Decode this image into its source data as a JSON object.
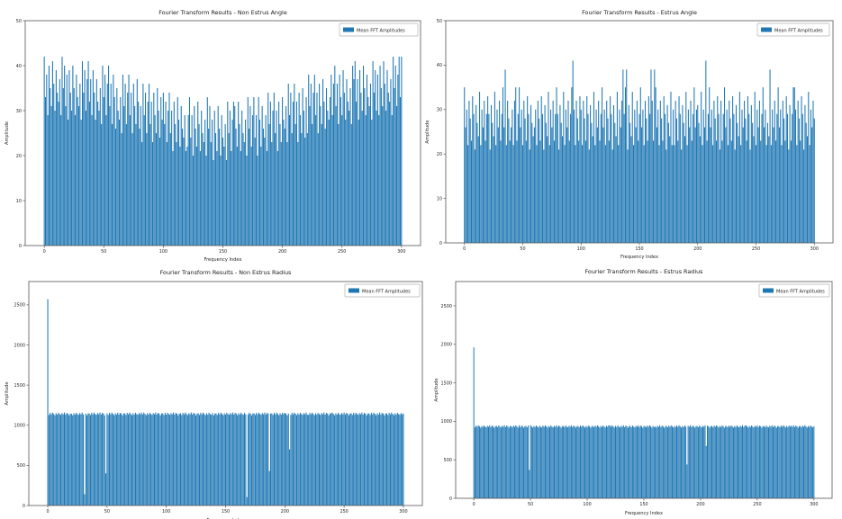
{
  "page": {
    "background": "#ffffff",
    "text_color": "#1a1a1a",
    "spine_color": "#555555",
    "legend_border": "#b3b3b3"
  },
  "chart_data": [
    {
      "id": "non-estrus-angle",
      "type": "bar",
      "title": "Fourier Transform Results - Non Estrus Angle",
      "xlabel": "Frequency Index",
      "ylabel": "Amplitude",
      "legend": {
        "label": "Mean FFT Amplitudes",
        "position": "upper right"
      },
      "bar_color": "#1f77b4",
      "grid": false,
      "xlim": [
        -16,
        316
      ],
      "ylim": [
        0,
        50
      ],
      "xticks": [
        0,
        50,
        100,
        150,
        200,
        250,
        300
      ],
      "yticks": [
        0,
        10,
        20,
        30,
        40,
        50
      ],
      "x_start": 0,
      "x_step": 1,
      "bar_width": 0.8,
      "values": [
        42,
        33,
        38,
        29,
        40,
        35,
        31,
        41,
        36,
        30,
        39,
        34,
        32,
        37,
        29,
        42,
        35,
        40,
        31,
        38,
        28,
        39,
        34,
        30,
        40,
        35,
        29,
        38,
        33,
        31,
        36,
        28,
        41,
        34,
        39,
        30,
        37,
        41,
        32,
        37,
        29,
        39,
        34,
        28,
        37,
        32,
        30,
        35,
        27,
        40,
        33,
        38,
        29,
        36,
        40,
        31,
        36,
        27,
        38,
        33,
        26,
        35,
        30,
        28,
        33,
        25,
        38,
        31,
        36,
        27,
        34,
        38,
        29,
        34,
        25,
        36,
        31,
        27,
        37,
        32,
        26,
        31,
        23,
        36,
        29,
        34,
        25,
        32,
        36,
        27,
        32,
        23,
        34,
        29,
        25,
        35,
        30,
        24,
        33,
        28,
        34,
        27,
        32,
        23,
        30,
        34,
        25,
        30,
        21,
        32,
        27,
        23,
        33,
        28,
        22,
        31,
        26,
        24,
        29,
        21,
        22,
        29,
        33,
        24,
        29,
        20,
        31,
        26,
        22,
        32,
        27,
        21,
        30,
        25,
        23,
        28,
        20,
        33,
        26,
        31,
        23,
        28,
        19,
        30,
        25,
        21,
        31,
        26,
        20,
        29,
        24,
        22,
        27,
        19,
        32,
        25,
        30,
        21,
        28,
        32,
        31,
        26,
        22,
        32,
        27,
        21,
        30,
        25,
        23,
        28,
        20,
        33,
        26,
        31,
        22,
        29,
        33,
        24,
        29,
        20,
        33,
        28,
        22,
        31,
        26,
        24,
        29,
        21,
        34,
        27,
        32,
        23,
        30,
        34,
        25,
        30,
        21,
        32,
        27,
        23,
        33,
        28,
        26,
        31,
        23,
        36,
        29,
        34,
        25,
        32,
        36,
        27,
        32,
        23,
        34,
        29,
        25,
        35,
        30,
        24,
        33,
        25,
        38,
        31,
        36,
        27,
        34,
        38,
        29,
        34,
        25,
        36,
        31,
        27,
        37,
        32,
        26,
        35,
        30,
        28,
        33,
        38,
        29,
        36,
        40,
        31,
        36,
        27,
        38,
        33,
        29,
        39,
        34,
        28,
        37,
        32,
        30,
        35,
        27,
        40,
        37,
        41,
        32,
        37,
        28,
        39,
        34,
        30,
        40,
        35,
        29,
        38,
        33,
        31,
        36,
        28,
        41,
        34,
        39,
        30,
        38,
        29,
        40,
        35,
        31,
        41,
        36,
        30,
        39,
        34,
        32,
        37,
        29,
        42,
        35,
        40,
        31,
        38,
        42,
        33,
        42
      ]
    },
    {
      "id": "estrus-angle",
      "type": "bar",
      "title": "Fourier Transform Results - Estrus Angle",
      "xlabel": "Frequency Index",
      "ylabel": "Amplitude",
      "legend": {
        "label": "Mean FFT Amplitudes",
        "position": "upper right"
      },
      "bar_color": "#1f77b4",
      "grid": false,
      "xlim": [
        -16,
        316
      ],
      "ylim": [
        0,
        50
      ],
      "xticks": [
        0,
        50,
        100,
        150,
        200,
        250,
        300
      ],
      "yticks": [
        0,
        10,
        20,
        30,
        40,
        50
      ],
      "x_start": 0,
      "x_step": 1,
      "bar_width": 0.8,
      "values": [
        35,
        26,
        30,
        22,
        32,
        28,
        23,
        33,
        29,
        21,
        31,
        27,
        24,
        34,
        22,
        30,
        26,
        32,
        23,
        29,
        33,
        29,
        21,
        31,
        27,
        24,
        34,
        22,
        30,
        26,
        32,
        23,
        29,
        35,
        26,
        39,
        22,
        32,
        28,
        23,
        26,
        30,
        22,
        32,
        35,
        23,
        29,
        35,
        26,
        30,
        22,
        32,
        28,
        23,
        33,
        29,
        21,
        31,
        27,
        24,
        26,
        30,
        22,
        32,
        28,
        23,
        33,
        29,
        21,
        31,
        27,
        24,
        34,
        22,
        30,
        26,
        32,
        23,
        29,
        35,
        29,
        21,
        31,
        27,
        24,
        34,
        22,
        30,
        26,
        32,
        23,
        29,
        35,
        41,
        30,
        22,
        32,
        28,
        23,
        33,
        30,
        22,
        32,
        28,
        23,
        33,
        29,
        21,
        31,
        27,
        24,
        34,
        22,
        30,
        26,
        32,
        23,
        29,
        35,
        26,
        30,
        22,
        32,
        28,
        23,
        33,
        29,
        21,
        31,
        27,
        24,
        34,
        22,
        30,
        26,
        32,
        39,
        29,
        35,
        39,
        21,
        31,
        27,
        24,
        34,
        22,
        30,
        26,
        32,
        23,
        29,
        35,
        26,
        30,
        22,
        32,
        28,
        23,
        33,
        29,
        39,
        32,
        23,
        39,
        35,
        26,
        30,
        22,
        32,
        28,
        23,
        33,
        29,
        21,
        31,
        27,
        24,
        34,
        22,
        30,
        22,
        32,
        28,
        23,
        33,
        29,
        21,
        31,
        27,
        24,
        34,
        22,
        30,
        26,
        32,
        23,
        29,
        35,
        26,
        30,
        31,
        27,
        24,
        34,
        22,
        30,
        26,
        41,
        23,
        29,
        35,
        26,
        30,
        22,
        32,
        28,
        23,
        33,
        29,
        21,
        32,
        23,
        29,
        35,
        26,
        30,
        22,
        32,
        28,
        23,
        33,
        29,
        21,
        31,
        27,
        24,
        34,
        22,
        30,
        26,
        32,
        28,
        23,
        33,
        29,
        21,
        31,
        27,
        24,
        34,
        22,
        30,
        26,
        32,
        23,
        29,
        35,
        26,
        30,
        22,
        27,
        24,
        39,
        22,
        30,
        26,
        32,
        23,
        29,
        35,
        26,
        30,
        22,
        32,
        28,
        23,
        33,
        29,
        21,
        31,
        23,
        29,
        35,
        35,
        30,
        22,
        32,
        28,
        23,
        33,
        29,
        21,
        31,
        27,
        24,
        34,
        22,
        30,
        26,
        32,
        28
      ]
    },
    {
      "id": "non-estrus-radius",
      "type": "bar",
      "title": "Fourier Transform Results - Non Estrus Radius",
      "xlabel": "Frequency Index",
      "ylabel": "Amplitude",
      "legend": {
        "label": "Mean FFT Amplitudes",
        "position": "upper right"
      },
      "bar_color": "#1f77b4",
      "grid": false,
      "xlim": [
        -16,
        316
      ],
      "ylim": [
        0,
        2790
      ],
      "xticks": [
        0,
        50,
        100,
        150,
        200,
        250,
        300
      ],
      "yticks": [
        0,
        500,
        1000,
        1500,
        2000,
        2500
      ],
      "x_start": 0,
      "x_step": 1,
      "bar_width": 0.8,
      "values": [
        2570,
        1128,
        1155,
        1135,
        1158,
        1142,
        1125,
        1150,
        1132,
        1156,
        1140,
        1130,
        1152,
        1137,
        1159,
        1133,
        1154,
        1145,
        1123,
        1146,
        1142,
        1125,
        1150,
        1132,
        1156,
        1140,
        1130,
        1152,
        1137,
        1159,
        1133,
        140,
        1145,
        1123,
        1146,
        1148,
        1128,
        1155,
        1135,
        1158,
        1140,
        1130,
        1152,
        1137,
        1159,
        1133,
        1154,
        1145,
        1123,
        400,
        1148,
        1128,
        1155,
        1135,
        1158,
        1142,
        1125,
        1150,
        1132,
        1156,
        1133,
        1154,
        1145,
        1123,
        1146,
        1148,
        1128,
        1155,
        1135,
        1158,
        1142,
        1125,
        1150,
        1132,
        1156,
        1140,
        1130,
        1152,
        1137,
        1159,
        1135,
        1158,
        1142,
        1125,
        1150,
        1132,
        1156,
        1140,
        1130,
        1152,
        1137,
        1159,
        1133,
        1154,
        1145,
        1123,
        1146,
        1148,
        1128,
        1155,
        1132,
        1156,
        1140,
        1130,
        1152,
        1137,
        1159,
        1133,
        1154,
        1145,
        1123,
        1146,
        1148,
        1128,
        1155,
        1135,
        1158,
        1142,
        1125,
        1150,
        1137,
        1159,
        1133,
        1154,
        1145,
        1123,
        1146,
        1148,
        1128,
        1155,
        1135,
        1158,
        1142,
        1125,
        1150,
        1132,
        1156,
        1140,
        1130,
        1152,
        1123,
        1146,
        1148,
        1128,
        1155,
        1135,
        1158,
        1142,
        1125,
        1150,
        1132,
        1156,
        1140,
        1130,
        1152,
        1137,
        1159,
        1133,
        1154,
        1145,
        1125,
        1150,
        1132,
        1156,
        1140,
        1130,
        1152,
        1137,
        105,
        1133,
        1154,
        1145,
        1123,
        1146,
        1148,
        1128,
        1155,
        1135,
        1158,
        1142,
        1130,
        1152,
        1137,
        1159,
        1133,
        1154,
        1145,
        430,
        1146,
        1148,
        1128,
        1155,
        1135,
        1158,
        1142,
        1125,
        1150,
        1132,
        1156,
        1140,
        1154,
        1145,
        1123,
        1146,
        700,
        1128,
        1155,
        1135,
        1158,
        1142,
        1125,
        1150,
        1132,
        1156,
        1140,
        1130,
        1152,
        1137,
        1159,
        1133,
        1128,
        1155,
        1135,
        1158,
        1142,
        1125,
        1150,
        1132,
        1156,
        1140,
        1130,
        1152,
        1137,
        1159,
        1133,
        1154,
        1145,
        1123,
        1146,
        1148,
        1158,
        1142,
        1125,
        1150,
        1132,
        1156,
        1140,
        1130,
        1152,
        1137,
        1159,
        1133,
        1154,
        1145,
        1123,
        1146,
        1148,
        1128,
        1155,
        1135,
        1156,
        1140,
        1130,
        1152,
        1137,
        1159,
        1133,
        1154,
        1145,
        1123,
        1146,
        1148,
        1128,
        1155,
        1135,
        1158,
        1142,
        1125,
        1150,
        1132,
        1159,
        1133,
        1154,
        1145,
        1123,
        1146,
        1148,
        1128,
        1155,
        1135,
        1158,
        1142,
        1125,
        1150,
        1132,
        1156,
        1140,
        1130,
        1152,
        1137,
        1145
      ]
    },
    {
      "id": "estrus-radius",
      "type": "bar",
      "title": "Fourier Transform Results - Estrus Radius",
      "xlabel": "Frequency Index",
      "ylabel": "Amplitude",
      "legend": {
        "label": "Mean FFT Amplitudes",
        "position": "upper right"
      },
      "bar_color": "#1f77b4",
      "grid": false,
      "xlim": [
        -16,
        316
      ],
      "ylim": [
        0,
        2815
      ],
      "xticks": [
        0,
        50,
        100,
        150,
        200,
        250,
        300
      ],
      "yticks": [
        0,
        500,
        1000,
        1500,
        2000,
        2500
      ],
      "x_start": 0,
      "x_step": 1,
      "bar_width": 0.8,
      "values": [
        1960,
        922,
        945,
        928,
        948,
        935,
        918,
        940,
        925,
        946,
        931,
        921,
        942,
        929,
        949,
        924,
        944,
        936,
        916,
        937,
        940,
        925,
        946,
        931,
        921,
        942,
        929,
        949,
        924,
        944,
        936,
        916,
        937,
        938,
        922,
        945,
        928,
        948,
        935,
        918,
        949,
        924,
        944,
        936,
        916,
        937,
        938,
        922,
        945,
        370,
        948,
        935,
        918,
        940,
        925,
        946,
        931,
        921,
        942,
        929,
        922,
        945,
        928,
        948,
        935,
        918,
        940,
        925,
        946,
        931,
        921,
        942,
        929,
        949,
        924,
        944,
        936,
        916,
        937,
        938,
        925,
        946,
        931,
        921,
        942,
        929,
        949,
        924,
        944,
        936,
        916,
        937,
        938,
        922,
        945,
        928,
        948,
        935,
        918,
        940,
        924,
        944,
        936,
        916,
        937,
        938,
        922,
        945,
        928,
        948,
        935,
        918,
        940,
        925,
        946,
        931,
        921,
        942,
        929,
        949,
        945,
        928,
        948,
        935,
        918,
        940,
        925,
        946,
        931,
        921,
        942,
        929,
        949,
        924,
        944,
        936,
        916,
        937,
        938,
        922,
        946,
        931,
        921,
        942,
        929,
        949,
        924,
        944,
        936,
        916,
        937,
        938,
        922,
        945,
        928,
        948,
        935,
        918,
        940,
        925,
        931,
        921,
        942,
        929,
        949,
        924,
        944,
        936,
        916,
        937,
        938,
        922,
        945,
        928,
        948,
        935,
        918,
        940,
        925,
        946,
        928,
        948,
        935,
        918,
        940,
        925,
        946,
        931,
        440,
        942,
        929,
        949,
        924,
        944,
        936,
        916,
        937,
        938,
        922,
        945,
        931,
        921,
        942,
        929,
        949,
        680,
        944,
        936,
        916,
        937,
        938,
        922,
        945,
        928,
        948,
        935,
        918,
        940,
        925,
        946,
        936,
        916,
        937,
        938,
        922,
        945,
        928,
        948,
        935,
        918,
        940,
        925,
        946,
        931,
        921,
        942,
        929,
        949,
        924,
        944,
        948,
        935,
        918,
        940,
        925,
        946,
        931,
        921,
        942,
        929,
        949,
        924,
        944,
        936,
        916,
        937,
        938,
        922,
        945,
        928,
        921,
        942,
        929,
        949,
        924,
        944,
        936,
        916,
        937,
        938,
        922,
        945,
        928,
        948,
        935,
        918,
        940,
        925,
        946,
        931,
        942,
        929,
        949,
        924,
        944,
        936,
        916,
        937,
        938,
        922,
        945,
        928,
        948,
        935,
        918,
        940,
        925,
        946,
        931,
        921,
        936
      ]
    }
  ]
}
